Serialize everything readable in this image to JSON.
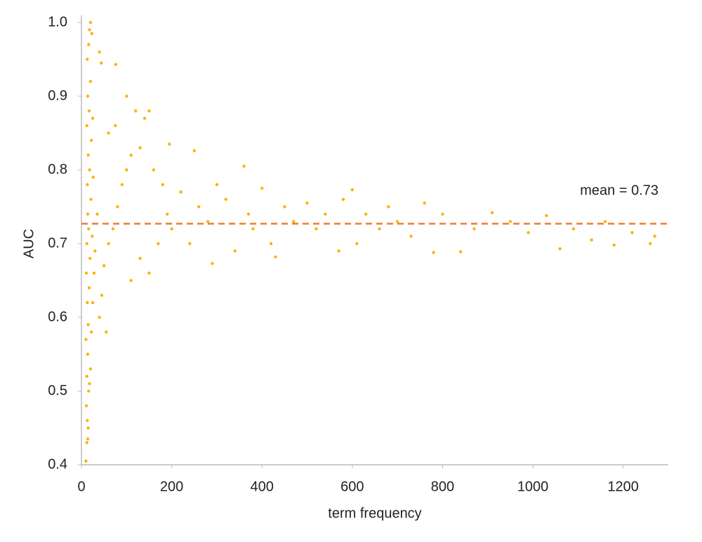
{
  "chart_data": {
    "type": "scatter",
    "x_label": "term frequency",
    "y_label": "AUC",
    "xlim": [
      0,
      1300
    ],
    "xticks": [
      0,
      200,
      400,
      600,
      800,
      1000,
      1200
    ],
    "ylim": [
      0.4,
      1.0
    ],
    "yticks": [
      0.4,
      0.5,
      0.6,
      0.7,
      0.8,
      0.9,
      {
        "value": 1.0,
        "label": "1.0"
      }
    ],
    "grid": false,
    "mean_line": {
      "value": 0.727,
      "label": "mean = 0.73",
      "color": "#ed7d31"
    },
    "x": [
      10,
      12,
      14,
      13,
      15,
      11,
      16,
      12,
      18,
      14,
      20,
      10,
      15,
      22,
      13,
      17,
      25,
      11,
      19,
      28,
      12,
      16,
      24,
      30,
      14,
      21,
      35,
      13,
      18,
      26,
      15,
      22,
      12,
      17,
      25,
      14,
      20,
      13,
      16,
      18,
      20,
      23,
      40,
      44,
      76,
      40,
      45,
      55,
      50,
      60,
      70,
      80,
      90,
      100,
      110,
      60,
      75,
      100,
      120,
      150,
      140,
      130,
      160,
      180,
      110,
      130,
      150,
      170,
      190,
      200,
      220,
      195,
      250,
      240,
      260,
      280,
      290,
      300,
      320,
      340,
      360,
      370,
      380,
      400,
      420,
      430,
      450,
      470,
      500,
      520,
      540,
      570,
      580,
      600,
      610,
      630,
      660,
      680,
      700,
      730,
      760,
      780,
      800,
      840,
      870,
      910,
      950,
      990,
      1030,
      1060,
      1090,
      1130,
      1160,
      1180,
      1220,
      1260,
      1270
    ],
    "series": [
      {
        "color": "#f7b500",
        "values": [
          0.405,
          0.43,
          0.435,
          0.46,
          0.45,
          0.48,
          0.5,
          0.52,
          0.51,
          0.55,
          0.53,
          0.57,
          0.59,
          0.58,
          0.62,
          0.64,
          0.62,
          0.66,
          0.68,
          0.66,
          0.7,
          0.72,
          0.71,
          0.69,
          0.74,
          0.76,
          0.74,
          0.78,
          0.8,
          0.79,
          0.82,
          0.84,
          0.86,
          0.88,
          0.87,
          0.9,
          0.92,
          0.95,
          0.97,
          0.99,
          1.0,
          0.985,
          0.96,
          0.945,
          0.943,
          0.6,
          0.63,
          0.58,
          0.67,
          0.7,
          0.72,
          0.75,
          0.78,
          0.8,
          0.82,
          0.85,
          0.86,
          0.9,
          0.88,
          0.88,
          0.87,
          0.83,
          0.8,
          0.78,
          0.65,
          0.68,
          0.66,
          0.7,
          0.74,
          0.72,
          0.77,
          0.835,
          0.826,
          0.7,
          0.75,
          0.73,
          0.673,
          0.78,
          0.76,
          0.69,
          0.805,
          0.74,
          0.72,
          0.775,
          0.7,
          0.682,
          0.75,
          0.73,
          0.755,
          0.72,
          0.74,
          0.69,
          0.76,
          0.773,
          0.7,
          0.74,
          0.72,
          0.75,
          0.73,
          0.71,
          0.755,
          0.688,
          0.74,
          0.689,
          0.72,
          0.742,
          0.73,
          0.715,
          0.738,
          0.693,
          0.72,
          0.705,
          0.73,
          0.698,
          0.715,
          0.7,
          0.71
        ]
      }
    ]
  }
}
